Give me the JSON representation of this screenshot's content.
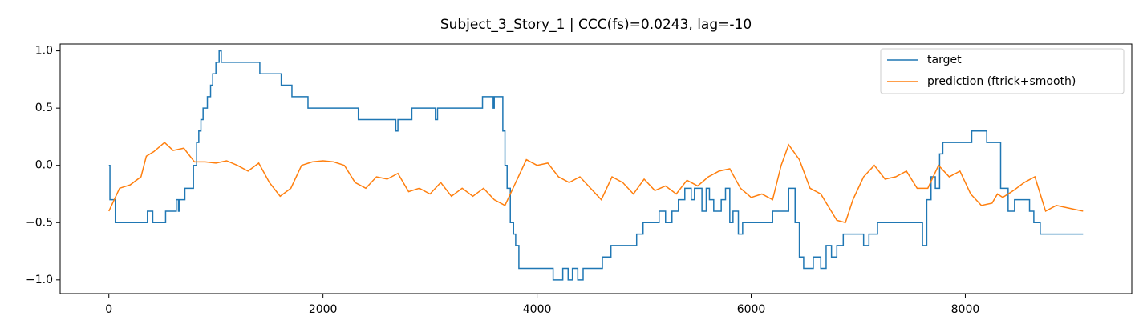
{
  "chart_data": {
    "type": "line",
    "title": "Subject_3_Story_1 | CCC(fs)=0.0243, lag=-10",
    "xlim": [
      -455,
      9555
    ],
    "ylim": [
      -1.12,
      1.06
    ],
    "xticks": [
      0,
      2000,
      4000,
      6000,
      8000
    ],
    "yticks": [
      {
        "value": -1.0,
        "label": "−1.0"
      },
      {
        "value": -0.5,
        "label": "−0.5"
      },
      {
        "value": 0.0,
        "label": "0.0"
      },
      {
        "value": 0.5,
        "label": "0.5"
      },
      {
        "value": 1.0,
        "label": "1.0"
      }
    ],
    "legend": "upper right",
    "grid": false,
    "series": [
      {
        "name": "target",
        "color": "#1f77b4",
        "drawstyle": "steps-post",
        "x": [
          0,
          10,
          50,
          60,
          350,
          360,
          400,
          410,
          520,
          530,
          620,
          630,
          650,
          660,
          700,
          710,
          780,
          790,
          820,
          840,
          860,
          880,
          920,
          950,
          970,
          1000,
          1030,
          1050,
          1400,
          1410,
          1600,
          1610,
          1700,
          1710,
          1850,
          1860,
          2320,
          2330,
          2670,
          2680,
          2700,
          2820,
          2830,
          3040,
          3050,
          3070,
          3480,
          3490,
          3580,
          3590,
          3600,
          3660,
          3680,
          3700,
          3720,
          3750,
          3780,
          3800,
          3830,
          4140,
          4150,
          4230,
          4240,
          4280,
          4290,
          4320,
          4330,
          4370,
          4380,
          4420,
          4430,
          4600,
          4610,
          4680,
          4690,
          4920,
          4930,
          4980,
          4990,
          5130,
          5140,
          5180,
          5200,
          5260,
          5320,
          5380,
          5440,
          5470,
          5540,
          5580,
          5610,
          5650,
          5720,
          5760,
          5800,
          5830,
          5880,
          5920,
          6100,
          6200,
          6300,
          6350,
          6410,
          6450,
          6490,
          6580,
          6650,
          6700,
          6750,
          6800,
          6860,
          7000,
          7050,
          7100,
          7180,
          7560,
          7600,
          7640,
          7680,
          7720,
          7760,
          7790,
          8050,
          8060,
          8190,
          8200,
          8300,
          8330,
          8400,
          8460,
          8600,
          8640,
          8700,
          9100
        ],
        "values": [
          0,
          -0.3,
          -0.3,
          -0.5,
          -0.5,
          -0.4,
          -0.4,
          -0.5,
          -0.5,
          -0.4,
          -0.4,
          -0.3,
          -0.4,
          -0.3,
          -0.3,
          -0.2,
          -0.2,
          0.0,
          0.2,
          0.3,
          0.4,
          0.5,
          0.6,
          0.7,
          0.8,
          0.9,
          1.0,
          0.9,
          0.9,
          0.8,
          0.8,
          0.7,
          0.7,
          0.6,
          0.6,
          0.5,
          0.5,
          0.4,
          0.4,
          0.3,
          0.4,
          0.4,
          0.5,
          0.5,
          0.4,
          0.5,
          0.5,
          0.6,
          0.6,
          0.5,
          0.6,
          0.6,
          0.3,
          0.0,
          -0.2,
          -0.5,
          -0.6,
          -0.7,
          -0.9,
          -0.9,
          -1.0,
          -1.0,
          -0.9,
          -0.9,
          -1.0,
          -1.0,
          -0.9,
          -0.9,
          -1.0,
          -1.0,
          -0.9,
          -0.9,
          -0.8,
          -0.8,
          -0.7,
          -0.7,
          -0.6,
          -0.6,
          -0.5,
          -0.5,
          -0.4,
          -0.4,
          -0.5,
          -0.4,
          -0.3,
          -0.2,
          -0.3,
          -0.2,
          -0.4,
          -0.2,
          -0.3,
          -0.4,
          -0.3,
          -0.2,
          -0.5,
          -0.4,
          -0.6,
          -0.5,
          -0.5,
          -0.4,
          -0.4,
          -0.2,
          -0.5,
          -0.8,
          -0.9,
          -0.8,
          -0.9,
          -0.7,
          -0.8,
          -0.7,
          -0.6,
          -0.6,
          -0.7,
          -0.6,
          -0.5,
          -0.5,
          -0.7,
          -0.3,
          -0.1,
          -0.2,
          0.1,
          0.2,
          0.2,
          0.3,
          0.3,
          0.2,
          0.2,
          -0.2,
          -0.4,
          -0.3,
          -0.4,
          -0.5,
          -0.6,
          -0.6
        ]
      },
      {
        "name": "prediction (ftrick+smooth)",
        "color": "#ff7f0e",
        "x": [
          0,
          100,
          200,
          300,
          350,
          420,
          520,
          600,
          700,
          800,
          900,
          1000,
          1100,
          1200,
          1300,
          1400,
          1500,
          1600,
          1700,
          1800,
          1900,
          2000,
          2100,
          2200,
          2300,
          2400,
          2500,
          2600,
          2700,
          2800,
          2900,
          3000,
          3100,
          3200,
          3300,
          3400,
          3500,
          3600,
          3700,
          3800,
          3900,
          4000,
          4100,
          4200,
          4300,
          4400,
          4500,
          4600,
          4700,
          4800,
          4900,
          5000,
          5100,
          5200,
          5300,
          5400,
          5500,
          5600,
          5700,
          5800,
          5900,
          6000,
          6100,
          6200,
          6280,
          6350,
          6450,
          6550,
          6650,
          6800,
          6880,
          6950,
          7050,
          7150,
          7250,
          7350,
          7450,
          7550,
          7650,
          7750,
          7850,
          7950,
          8050,
          8150,
          8250,
          8300,
          8350,
          8450,
          8550,
          8650,
          8750,
          8850,
          9000,
          9100
        ],
        "values": [
          -0.4,
          -0.2,
          -0.17,
          -0.1,
          0.08,
          0.12,
          0.2,
          0.13,
          0.15,
          0.03,
          0.03,
          0.02,
          0.04,
          0.0,
          -0.05,
          0.02,
          -0.15,
          -0.27,
          -0.2,
          0.0,
          0.03,
          0.04,
          0.03,
          0.0,
          -0.15,
          -0.2,
          -0.1,
          -0.12,
          -0.07,
          -0.23,
          -0.2,
          -0.25,
          -0.15,
          -0.27,
          -0.2,
          -0.27,
          -0.2,
          -0.3,
          -0.35,
          -0.15,
          0.05,
          0.0,
          0.02,
          -0.1,
          -0.15,
          -0.1,
          -0.2,
          -0.3,
          -0.1,
          -0.15,
          -0.25,
          -0.12,
          -0.22,
          -0.18,
          -0.25,
          -0.13,
          -0.18,
          -0.1,
          -0.05,
          -0.03,
          -0.2,
          -0.28,
          -0.25,
          -0.3,
          0.0,
          0.18,
          0.05,
          -0.2,
          -0.25,
          -0.48,
          -0.5,
          -0.3,
          -0.1,
          0.0,
          -0.12,
          -0.1,
          -0.05,
          -0.2,
          -0.2,
          0.0,
          -0.1,
          -0.05,
          -0.25,
          -0.35,
          -0.33,
          -0.25,
          -0.28,
          -0.22,
          -0.15,
          -0.1,
          -0.4,
          -0.35,
          -0.38,
          -0.4
        ]
      }
    ]
  }
}
